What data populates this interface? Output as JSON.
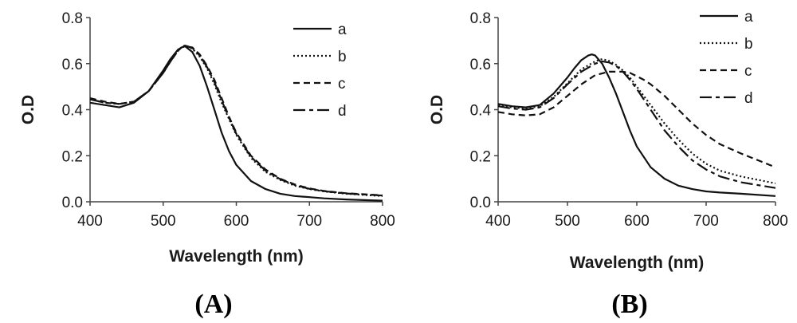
{
  "chart_data": [
    {
      "type": "line",
      "panel_label": "(A)",
      "xlabel": "Wavelength (nm)",
      "ylabel": "O.D",
      "xlim": [
        400,
        800
      ],
      "ylim": [
        0,
        0.8
      ],
      "xticks": [
        "400",
        "500",
        "600",
        "700",
        "800"
      ],
      "yticks": [
        "0.0",
        "0.2",
        "0.4",
        "0.6",
        "0.8"
      ],
      "grid": false,
      "legend_position": "top-right",
      "series": [
        {
          "name": "a",
          "style": "solid",
          "x": [
            400,
            420,
            440,
            460,
            480,
            500,
            510,
            520,
            525,
            530,
            540,
            550,
            560,
            570,
            580,
            590,
            600,
            620,
            640,
            660,
            680,
            700,
            720,
            750,
            800
          ],
          "y": [
            0.43,
            0.42,
            0.41,
            0.43,
            0.48,
            0.57,
            0.62,
            0.66,
            0.67,
            0.675,
            0.65,
            0.59,
            0.5,
            0.4,
            0.3,
            0.22,
            0.16,
            0.09,
            0.055,
            0.035,
            0.025,
            0.02,
            0.015,
            0.01,
            0.005
          ]
        },
        {
          "name": "b",
          "style": "dotted",
          "x": [
            400,
            420,
            440,
            460,
            480,
            500,
            510,
            520,
            525,
            530,
            540,
            550,
            560,
            570,
            580,
            590,
            600,
            620,
            640,
            660,
            680,
            700,
            720,
            750,
            800
          ],
          "y": [
            0.445,
            0.43,
            0.425,
            0.435,
            0.48,
            0.56,
            0.61,
            0.655,
            0.67,
            0.68,
            0.665,
            0.63,
            0.58,
            0.51,
            0.43,
            0.36,
            0.29,
            0.19,
            0.13,
            0.095,
            0.07,
            0.055,
            0.045,
            0.035,
            0.025
          ]
        },
        {
          "name": "c",
          "style": "dashed",
          "x": [
            400,
            420,
            440,
            460,
            480,
            500,
            510,
            520,
            525,
            530,
            540,
            550,
            560,
            570,
            580,
            590,
            600,
            620,
            640,
            660,
            680,
            700,
            720,
            750,
            800
          ],
          "y": [
            0.45,
            0.435,
            0.425,
            0.435,
            0.48,
            0.56,
            0.61,
            0.655,
            0.67,
            0.675,
            0.67,
            0.64,
            0.59,
            0.53,
            0.45,
            0.37,
            0.3,
            0.2,
            0.14,
            0.1,
            0.075,
            0.058,
            0.047,
            0.037,
            0.028
          ]
        },
        {
          "name": "d",
          "style": "longdash",
          "x": [
            400,
            420,
            440,
            460,
            480,
            500,
            510,
            520,
            525,
            530,
            540,
            550,
            560,
            570,
            580,
            590,
            600,
            620,
            640,
            660,
            680,
            700,
            720,
            750,
            800
          ],
          "y": [
            0.445,
            0.43,
            0.425,
            0.435,
            0.48,
            0.56,
            0.61,
            0.655,
            0.67,
            0.678,
            0.668,
            0.635,
            0.585,
            0.52,
            0.44,
            0.365,
            0.295,
            0.195,
            0.135,
            0.098,
            0.073,
            0.056,
            0.046,
            0.036,
            0.027
          ]
        }
      ]
    },
    {
      "type": "line",
      "panel_label": "(B)",
      "xlabel": "Wavelength (nm)",
      "ylabel": "O.D",
      "xlim": [
        400,
        800
      ],
      "ylim": [
        0,
        0.8
      ],
      "xticks": [
        "400",
        "500",
        "600",
        "700",
        "800"
      ],
      "yticks": [
        "0.0",
        "0.2",
        "0.4",
        "0.6",
        "0.8"
      ],
      "grid": false,
      "legend_position": "top-right",
      "series": [
        {
          "name": "a",
          "style": "solid",
          "x": [
            400,
            420,
            440,
            460,
            480,
            500,
            510,
            520,
            530,
            535,
            540,
            550,
            560,
            570,
            580,
            590,
            600,
            620,
            640,
            660,
            680,
            700,
            720,
            750,
            800
          ],
          "y": [
            0.425,
            0.415,
            0.41,
            0.42,
            0.47,
            0.54,
            0.58,
            0.615,
            0.635,
            0.64,
            0.635,
            0.6,
            0.54,
            0.47,
            0.39,
            0.31,
            0.24,
            0.15,
            0.1,
            0.07,
            0.055,
            0.045,
            0.04,
            0.035,
            0.025
          ]
        },
        {
          "name": "b",
          "style": "dotted",
          "x": [
            400,
            420,
            440,
            460,
            480,
            500,
            520,
            540,
            550,
            560,
            570,
            580,
            590,
            600,
            620,
            640,
            660,
            680,
            700,
            720,
            750,
            800
          ],
          "y": [
            0.42,
            0.41,
            0.405,
            0.415,
            0.455,
            0.515,
            0.575,
            0.61,
            0.62,
            0.612,
            0.595,
            0.57,
            0.54,
            0.5,
            0.42,
            0.34,
            0.27,
            0.21,
            0.165,
            0.135,
            0.11,
            0.08
          ]
        },
        {
          "name": "c",
          "style": "dashed",
          "x": [
            400,
            420,
            440,
            460,
            480,
            500,
            520,
            540,
            560,
            580,
            590,
            600,
            610,
            620,
            640,
            660,
            680,
            700,
            720,
            750,
            800
          ],
          "y": [
            0.39,
            0.38,
            0.375,
            0.38,
            0.41,
            0.46,
            0.51,
            0.55,
            0.565,
            0.565,
            0.56,
            0.545,
            0.53,
            0.51,
            0.46,
            0.4,
            0.34,
            0.29,
            0.25,
            0.21,
            0.15
          ]
        },
        {
          "name": "d",
          "style": "longdash",
          "x": [
            400,
            420,
            440,
            460,
            480,
            500,
            520,
            540,
            550,
            560,
            570,
            580,
            590,
            600,
            620,
            640,
            660,
            680,
            700,
            720,
            750,
            800
          ],
          "y": [
            0.415,
            0.405,
            0.4,
            0.41,
            0.45,
            0.51,
            0.565,
            0.6,
            0.61,
            0.605,
            0.59,
            0.565,
            0.53,
            0.49,
            0.4,
            0.31,
            0.24,
            0.18,
            0.14,
            0.11,
            0.085,
            0.06
          ]
        }
      ]
    }
  ]
}
